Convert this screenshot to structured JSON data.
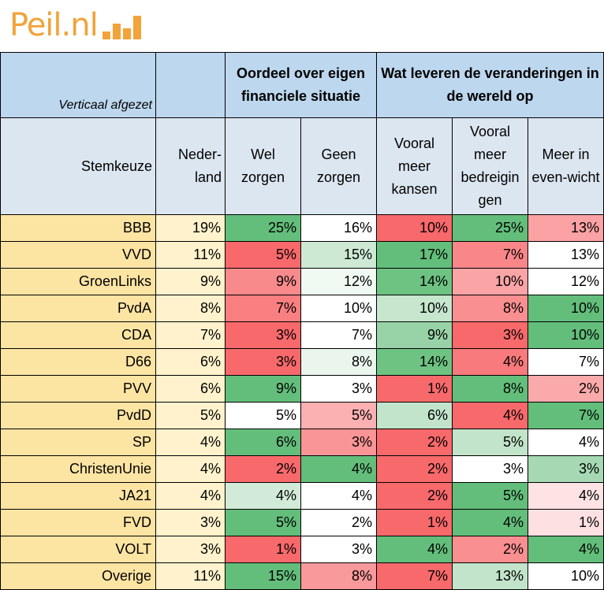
{
  "logo": {
    "text": "Peil.nl"
  },
  "table": {
    "corner_label": "Verticaal afgezet",
    "group_headers": [
      "Oordeel over eigen financiele situatie",
      "Wat leveren de veranderingen in de wereld op"
    ],
    "column_headers": [
      "Stemkeuze",
      "Neder-land",
      "Wel zorgen",
      "Geen zorgen",
      "Vooral meer kansen",
      "Vooral meer bedreigin gen",
      "Meer in even-wicht"
    ]
  },
  "chart_data": {
    "type": "table",
    "rows": [
      {
        "party": "BBB",
        "values": [
          "19%",
          "25%",
          "16%",
          "10%",
          "25%",
          "13%"
        ]
      },
      {
        "party": "VVD",
        "values": [
          "11%",
          "5%",
          "15%",
          "17%",
          "7%",
          "13%"
        ]
      },
      {
        "party": "GroenLinks",
        "values": [
          "9%",
          "9%",
          "12%",
          "14%",
          "10%",
          "12%"
        ]
      },
      {
        "party": "PvdA",
        "values": [
          "8%",
          "7%",
          "10%",
          "10%",
          "8%",
          "10%"
        ]
      },
      {
        "party": "CDA",
        "values": [
          "7%",
          "3%",
          "7%",
          "9%",
          "3%",
          "10%"
        ]
      },
      {
        "party": "D66",
        "values": [
          "6%",
          "3%",
          "8%",
          "14%",
          "4%",
          "7%"
        ]
      },
      {
        "party": "PVV",
        "values": [
          "6%",
          "9%",
          "3%",
          "1%",
          "8%",
          "2%"
        ]
      },
      {
        "party": "PvdD",
        "values": [
          "5%",
          "5%",
          "5%",
          "6%",
          "4%",
          "7%"
        ]
      },
      {
        "party": "SP",
        "values": [
          "4%",
          "6%",
          "3%",
          "2%",
          "5%",
          "4%"
        ]
      },
      {
        "party": "ChristenUnie",
        "values": [
          "4%",
          "2%",
          "4%",
          "2%",
          "3%",
          "3%"
        ]
      },
      {
        "party": "JA21",
        "values": [
          "4%",
          "4%",
          "4%",
          "2%",
          "5%",
          "4%"
        ]
      },
      {
        "party": "FVD",
        "values": [
          "3%",
          "5%",
          "2%",
          "1%",
          "4%",
          "1%"
        ]
      },
      {
        "party": "VOLT",
        "values": [
          "3%",
          "1%",
          "3%",
          "4%",
          "2%",
          "4%"
        ]
      },
      {
        "party": "Overige",
        "values": [
          "11%",
          "15%",
          "8%",
          "7%",
          "13%",
          "10%"
        ]
      }
    ],
    "cell_colors": [
      [
        "#fff2cc",
        "#63be7b",
        "#ffffff",
        "#f8696b",
        "#63be7b",
        "#fba2a4"
      ],
      [
        "#fff2cc",
        "#f8696b",
        "#cde9d4",
        "#63be7b",
        "#f98688",
        "#ffffff"
      ],
      [
        "#fff2cc",
        "#f98a8c",
        "#f1f9f3",
        "#6ec383",
        "#fba4a6",
        "#ffffff"
      ],
      [
        "#fff2cc",
        "#f97f81",
        "#ffffff",
        "#c6e6ce",
        "#fa8f91",
        "#63be7b"
      ],
      [
        "#fff2cc",
        "#f8696b",
        "#ffffff",
        "#98d3a8",
        "#f8696b",
        "#63be7b"
      ],
      [
        "#fff2cc",
        "#f8696b",
        "#eaf6ed",
        "#6ec383",
        "#f97a7c",
        "#ffffff"
      ],
      [
        "#fff2cc",
        "#63be7b",
        "#ffffff",
        "#f8696b",
        "#63be7b",
        "#fbaaab"
      ],
      [
        "#fff2cc",
        "#ffffff",
        "#fbb0b2",
        "#c1e4ca",
        "#f8696b",
        "#63be7b"
      ],
      [
        "#fff2cc",
        "#63be7b",
        "#fa9597",
        "#f8696b",
        "#c2e4ca",
        "#ffffff"
      ],
      [
        "#fff2cc",
        "#f8696b",
        "#63be7b",
        "#f8696b",
        "#ffffff",
        "#a6d9b3"
      ],
      [
        "#fff2cc",
        "#d2ebd8",
        "#ffffff",
        "#f8696b",
        "#63be7b",
        "#fde3e4"
      ],
      [
        "#fff2cc",
        "#63be7b",
        "#ffffff",
        "#f8696b",
        "#63be7b",
        "#fde0e1"
      ],
      [
        "#fff2cc",
        "#f8696b",
        "#ffffff",
        "#63be7b",
        "#fa8f91",
        "#63be7b"
      ],
      [
        "#fff2cc",
        "#63be7b",
        "#f9999b",
        "#f8696b",
        "#c1e4ca",
        "#ffffff"
      ]
    ]
  }
}
